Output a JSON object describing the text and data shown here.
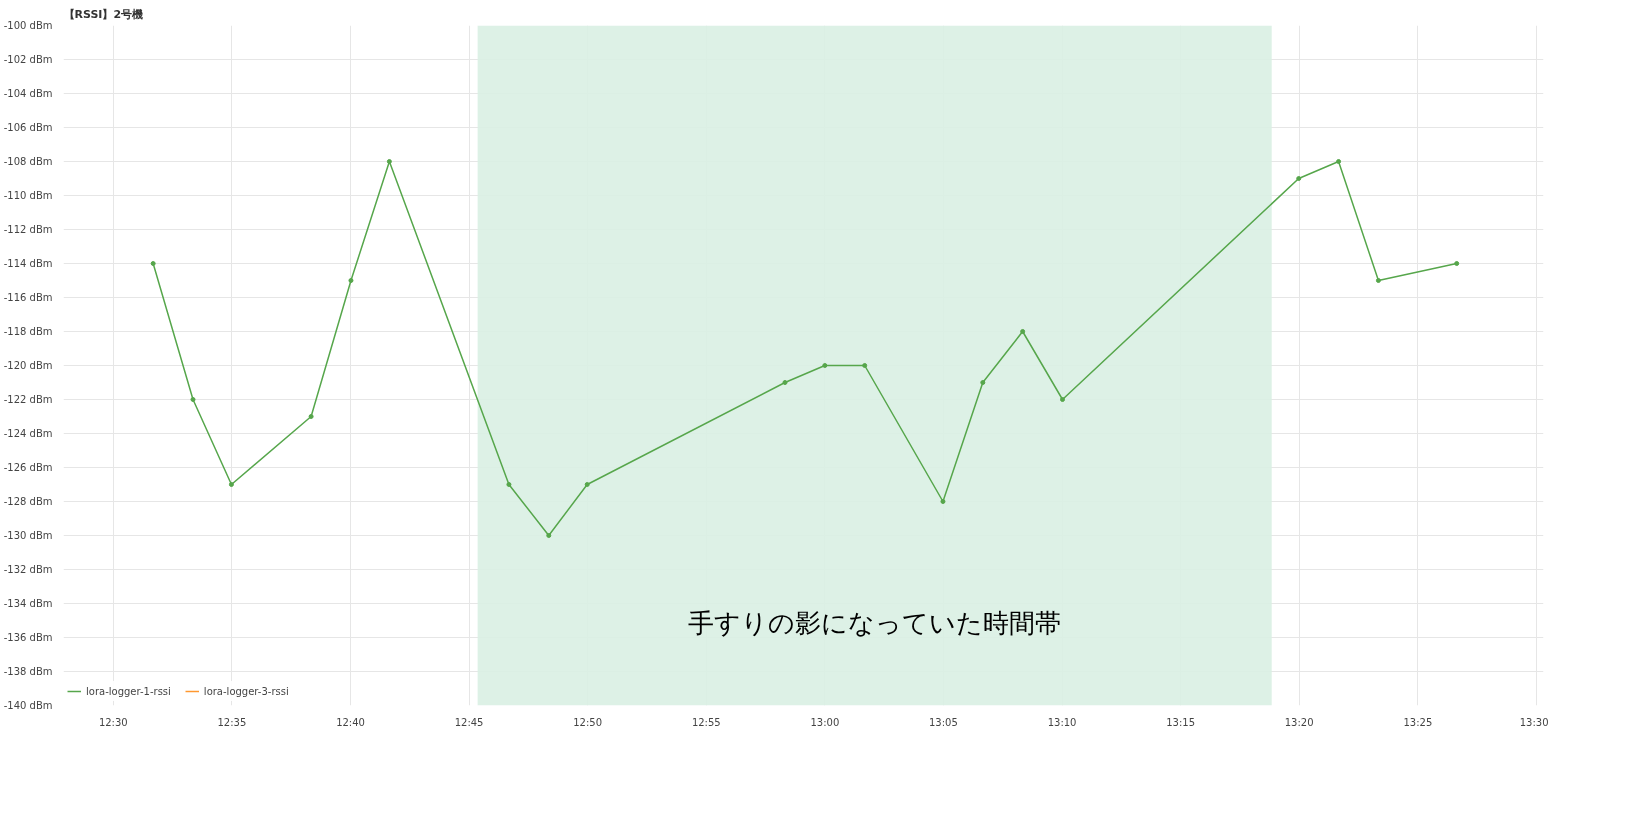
{
  "chart_data": {
    "type": "line",
    "title": "【RSSI】2号機",
    "x": [
      12.528,
      12.556,
      12.583,
      12.639,
      12.667,
      12.694,
      12.778,
      12.806,
      12.833,
      12.972,
      13.0,
      13.028,
      13.083,
      13.111,
      13.139,
      13.167,
      13.333,
      13.361,
      13.389,
      13.444
    ],
    "series": [
      {
        "name": "lora-logger-1-rssi",
        "color": "#56a64b",
        "values": [
          -114,
          -122,
          -127,
          -123,
          -115,
          -108,
          -127,
          -130,
          -127,
          -121,
          -120,
          -120,
          -128,
          -121,
          -118,
          -122,
          -109,
          -108,
          -115,
          -114
        ]
      },
      {
        "name": "lora-logger-3-rssi",
        "color": "#ff9830",
        "values": [
          null,
          null,
          null,
          null,
          null,
          null,
          null,
          null,
          null,
          null,
          null,
          null,
          null,
          null,
          null,
          null,
          null,
          null,
          null,
          null
        ]
      }
    ],
    "xlim": [
      12.465,
      13.505
    ],
    "xticks": [
      {
        "value": 12.5,
        "label": "12:30"
      },
      {
        "value": 12.5833,
        "label": "12:35"
      },
      {
        "value": 12.6667,
        "label": "12:40"
      },
      {
        "value": 12.75,
        "label": "12:45"
      },
      {
        "value": 12.8333,
        "label": "12:50"
      },
      {
        "value": 12.9167,
        "label": "12:55"
      },
      {
        "value": 13.0,
        "label": "13:00"
      },
      {
        "value": 13.0833,
        "label": "13:05"
      },
      {
        "value": 13.1667,
        "label": "13:10"
      },
      {
        "value": 13.25,
        "label": "13:15"
      },
      {
        "value": 13.3333,
        "label": "13:20"
      },
      {
        "value": 13.4167,
        "label": "13:25"
      },
      {
        "value": 13.5,
        "label": "13:30"
      }
    ],
    "ylim": [
      -140,
      -100
    ],
    "yticks": [
      {
        "value": -100,
        "label": "-100 dBm"
      },
      {
        "value": -102,
        "label": "-102 dBm"
      },
      {
        "value": -104,
        "label": "-104 dBm"
      },
      {
        "value": -106,
        "label": "-106 dBm"
      },
      {
        "value": -108,
        "label": "-108 dBm"
      },
      {
        "value": -110,
        "label": "-110 dBm"
      },
      {
        "value": -112,
        "label": "-112 dBm"
      },
      {
        "value": -114,
        "label": "-114 dBm"
      },
      {
        "value": -116,
        "label": "-116 dBm"
      },
      {
        "value": -118,
        "label": "-118 dBm"
      },
      {
        "value": -120,
        "label": "-120 dBm"
      },
      {
        "value": -122,
        "label": "-122 dBm"
      },
      {
        "value": -124,
        "label": "-124 dBm"
      },
      {
        "value": -126,
        "label": "-126 dBm"
      },
      {
        "value": -128,
        "label": "-128 dBm"
      },
      {
        "value": -130,
        "label": "-130 dBm"
      },
      {
        "value": -132,
        "label": "-132 dBm"
      },
      {
        "value": -134,
        "label": "-134 dBm"
      },
      {
        "value": -136,
        "label": "-136 dBm"
      },
      {
        "value": -138,
        "label": "-138 dBm"
      },
      {
        "value": -140,
        "label": "-140 dBm"
      }
    ],
    "bands": [
      {
        "axis": "x",
        "from": 12.756,
        "to": 13.314,
        "label": "手すりの影になっていた時間帯",
        "color": "#d9f0e3"
      }
    ],
    "grid": true,
    "legend": "bottom left",
    "marker": "circle",
    "line_style": "solid"
  }
}
